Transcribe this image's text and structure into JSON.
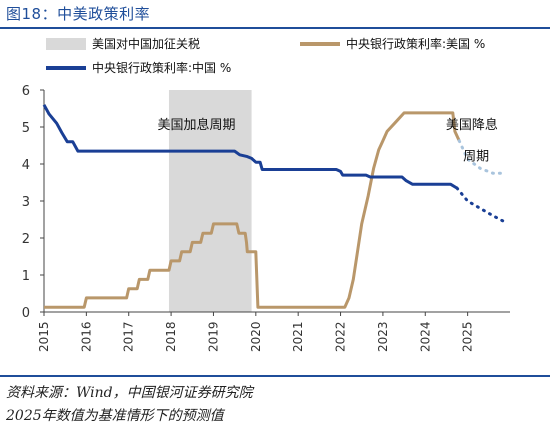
{
  "figure_title": "图18：中美政策利率",
  "source_note": "资料来源：Wind，中国银河证券研究院",
  "forecast_note": "2025年数值为基准情形下的预测值",
  "chart_data": {
    "type": "line",
    "title": "",
    "xlabel": "",
    "ylabel": "",
    "ylim": [
      0,
      6
    ],
    "xlim": [
      2015.0,
      2026.0
    ],
    "yticks": [
      "0",
      "1",
      "2",
      "3",
      "4",
      "5",
      "6"
    ],
    "xticks": [
      "2015",
      "2016",
      "2017",
      "2018",
      "2019",
      "2020",
      "2021",
      "2022",
      "2023",
      "2024",
      "2025"
    ],
    "grid": false,
    "legend_position": "top",
    "legend": [
      "美国对中国加征关税",
      "中央银行政策利率:美国 %",
      "中央银行政策利率:中国 %"
    ],
    "shaded_ranges": [
      {
        "name": "美国对中国加征关税",
        "x_start": 2017.95,
        "x_end": 2019.9
      }
    ],
    "annotations": [
      {
        "text": "美国加息周期",
        "x": 2018.6,
        "y": 4.95
      },
      {
        "text": "美国降息",
        "x": 2025.1,
        "y": 4.95
      },
      {
        "text": "周期",
        "x": 2025.2,
        "y": 4.1
      }
    ],
    "colors": {
      "us": "#b9976a",
      "us_forecast": "#a9c4dd",
      "cn": "#1a3f95",
      "shade": "#d9d9d9"
    },
    "series": [
      {
        "name": "中央银行政策利率:美国 %",
        "points": [
          [
            2015.0,
            0.13
          ],
          [
            2015.95,
            0.13
          ],
          [
            2016.0,
            0.38
          ],
          [
            2016.95,
            0.38
          ],
          [
            2017.0,
            0.63
          ],
          [
            2017.2,
            0.63
          ],
          [
            2017.25,
            0.88
          ],
          [
            2017.45,
            0.88
          ],
          [
            2017.5,
            1.13
          ],
          [
            2017.95,
            1.13
          ],
          [
            2018.0,
            1.38
          ],
          [
            2018.2,
            1.38
          ],
          [
            2018.25,
            1.63
          ],
          [
            2018.45,
            1.63
          ],
          [
            2018.5,
            1.88
          ],
          [
            2018.7,
            1.88
          ],
          [
            2018.75,
            2.13
          ],
          [
            2018.95,
            2.13
          ],
          [
            2019.0,
            2.38
          ],
          [
            2019.55,
            2.38
          ],
          [
            2019.6,
            2.13
          ],
          [
            2019.75,
            2.13
          ],
          [
            2019.78,
            1.88
          ],
          [
            2019.8,
            1.63
          ],
          [
            2020.0,
            1.63
          ],
          [
            2020.05,
            0.13
          ],
          [
            2022.1,
            0.13
          ],
          [
            2022.2,
            0.38
          ],
          [
            2022.3,
            0.88
          ],
          [
            2022.4,
            1.63
          ],
          [
            2022.5,
            2.38
          ],
          [
            2022.65,
            3.13
          ],
          [
            2022.78,
            3.88
          ],
          [
            2022.9,
            4.38
          ],
          [
            2023.0,
            4.63
          ],
          [
            2023.1,
            4.88
          ],
          [
            2023.3,
            5.13
          ],
          [
            2023.5,
            5.38
          ],
          [
            2024.65,
            5.38
          ],
          [
            2024.7,
            4.88
          ],
          [
            2024.8,
            4.63
          ]
        ]
      },
      {
        "name": "中央银行政策利率:美国 % (预测)",
        "points": [
          [
            2024.8,
            4.63
          ],
          [
            2025.0,
            4.13
          ],
          [
            2025.3,
            3.88
          ],
          [
            2025.6,
            3.75
          ],
          [
            2025.9,
            3.75
          ]
        ]
      },
      {
        "name": "中央银行政策利率:中国 %",
        "points": [
          [
            2015.0,
            5.6
          ],
          [
            2015.12,
            5.35
          ],
          [
            2015.3,
            5.1
          ],
          [
            2015.42,
            4.85
          ],
          [
            2015.55,
            4.6
          ],
          [
            2015.68,
            4.6
          ],
          [
            2015.8,
            4.35
          ],
          [
            2019.5,
            4.35
          ],
          [
            2019.62,
            4.25
          ],
          [
            2019.8,
            4.2
          ],
          [
            2019.9,
            4.15
          ],
          [
            2020.0,
            4.05
          ],
          [
            2020.1,
            4.05
          ],
          [
            2020.15,
            3.85
          ],
          [
            2021.9,
            3.85
          ],
          [
            2022.0,
            3.8
          ],
          [
            2022.05,
            3.7
          ],
          [
            2022.6,
            3.7
          ],
          [
            2022.7,
            3.65
          ],
          [
            2023.45,
            3.65
          ],
          [
            2023.55,
            3.55
          ],
          [
            2023.7,
            3.45
          ],
          [
            2024.6,
            3.45
          ],
          [
            2024.75,
            3.35
          ]
        ]
      },
      {
        "name": "中央银行政策利率:中国 % (预测)",
        "points": [
          [
            2024.75,
            3.35
          ],
          [
            2025.0,
            3.0
          ],
          [
            2025.3,
            2.8
          ],
          [
            2025.6,
            2.6
          ],
          [
            2025.9,
            2.42
          ]
        ]
      }
    ]
  }
}
